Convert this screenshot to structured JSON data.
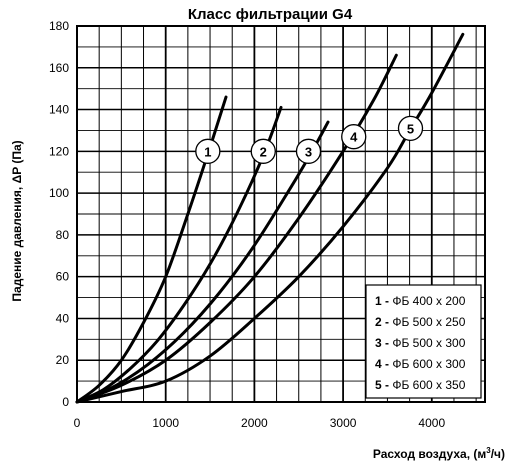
{
  "chart_data": {
    "type": "line",
    "title": "Класс фильтрации G4",
    "xlabel": "Расход воздуха, (м",
    "xlabel_sup": "3",
    "xlabel_tail": "/ч)",
    "ylabel": "Падение давления, ΔP (Па)",
    "xlim": [
      0,
      4600
    ],
    "ylim": [
      0,
      180
    ],
    "x_ticks": [
      "0",
      "1000",
      "2000",
      "3000",
      "4000"
    ],
    "y_ticks": [
      "0",
      "20",
      "40",
      "60",
      "80",
      "100",
      "120",
      "140",
      "160",
      "180"
    ],
    "grid": true,
    "series": [
      {
        "name": "1",
        "legend": "ФБ 400 х 200",
        "points": [
          [
            0,
            0
          ],
          [
            250,
            8
          ],
          [
            500,
            20
          ],
          [
            750,
            38
          ],
          [
            1000,
            60
          ],
          [
            1250,
            90
          ],
          [
            1500,
            122
          ],
          [
            1680,
            146
          ]
        ],
        "label_at": [
          1475,
          120
        ]
      },
      {
        "name": "2",
        "legend": "ФБ 500 х 250",
        "points": [
          [
            0,
            0
          ],
          [
            300,
            6
          ],
          [
            600,
            16
          ],
          [
            900,
            29
          ],
          [
            1200,
            46
          ],
          [
            1500,
            66
          ],
          [
            1800,
            90
          ],
          [
            2100,
            118
          ],
          [
            2300,
            141
          ]
        ],
        "label_at": [
          2100,
          120
        ]
      },
      {
        "name": "3",
        "legend": "ФБ 500 х 300",
        "points": [
          [
            0,
            0
          ],
          [
            400,
            7
          ],
          [
            800,
            18
          ],
          [
            1200,
            33
          ],
          [
            1600,
            52
          ],
          [
            2000,
            75
          ],
          [
            2400,
            102
          ],
          [
            2650,
            120
          ],
          [
            2830,
            134
          ]
        ],
        "label_at": [
          2610,
          120
        ]
      },
      {
        "name": "4",
        "legend": "ФБ 600 х 300",
        "points": [
          [
            0,
            0
          ],
          [
            500,
            8
          ],
          [
            1000,
            20
          ],
          [
            1500,
            38
          ],
          [
            2000,
            60
          ],
          [
            2500,
            88
          ],
          [
            3000,
            120
          ],
          [
            3350,
            145
          ],
          [
            3600,
            166
          ]
        ],
        "label_at": [
          3120,
          127
        ]
      },
      {
        "name": "5",
        "legend": "ФБ 600 х 350",
        "points": [
          [
            0,
            0
          ],
          [
            500,
            5
          ],
          [
            1000,
            10
          ],
          [
            1500,
            22
          ],
          [
            2000,
            40
          ],
          [
            2500,
            60
          ],
          [
            3000,
            84
          ],
          [
            3500,
            112
          ],
          [
            3750,
            130
          ],
          [
            4000,
            148
          ],
          [
            4350,
            176
          ]
        ],
        "label_at": [
          3760,
          131
        ]
      }
    ],
    "legend_position": "bottom-right"
  }
}
